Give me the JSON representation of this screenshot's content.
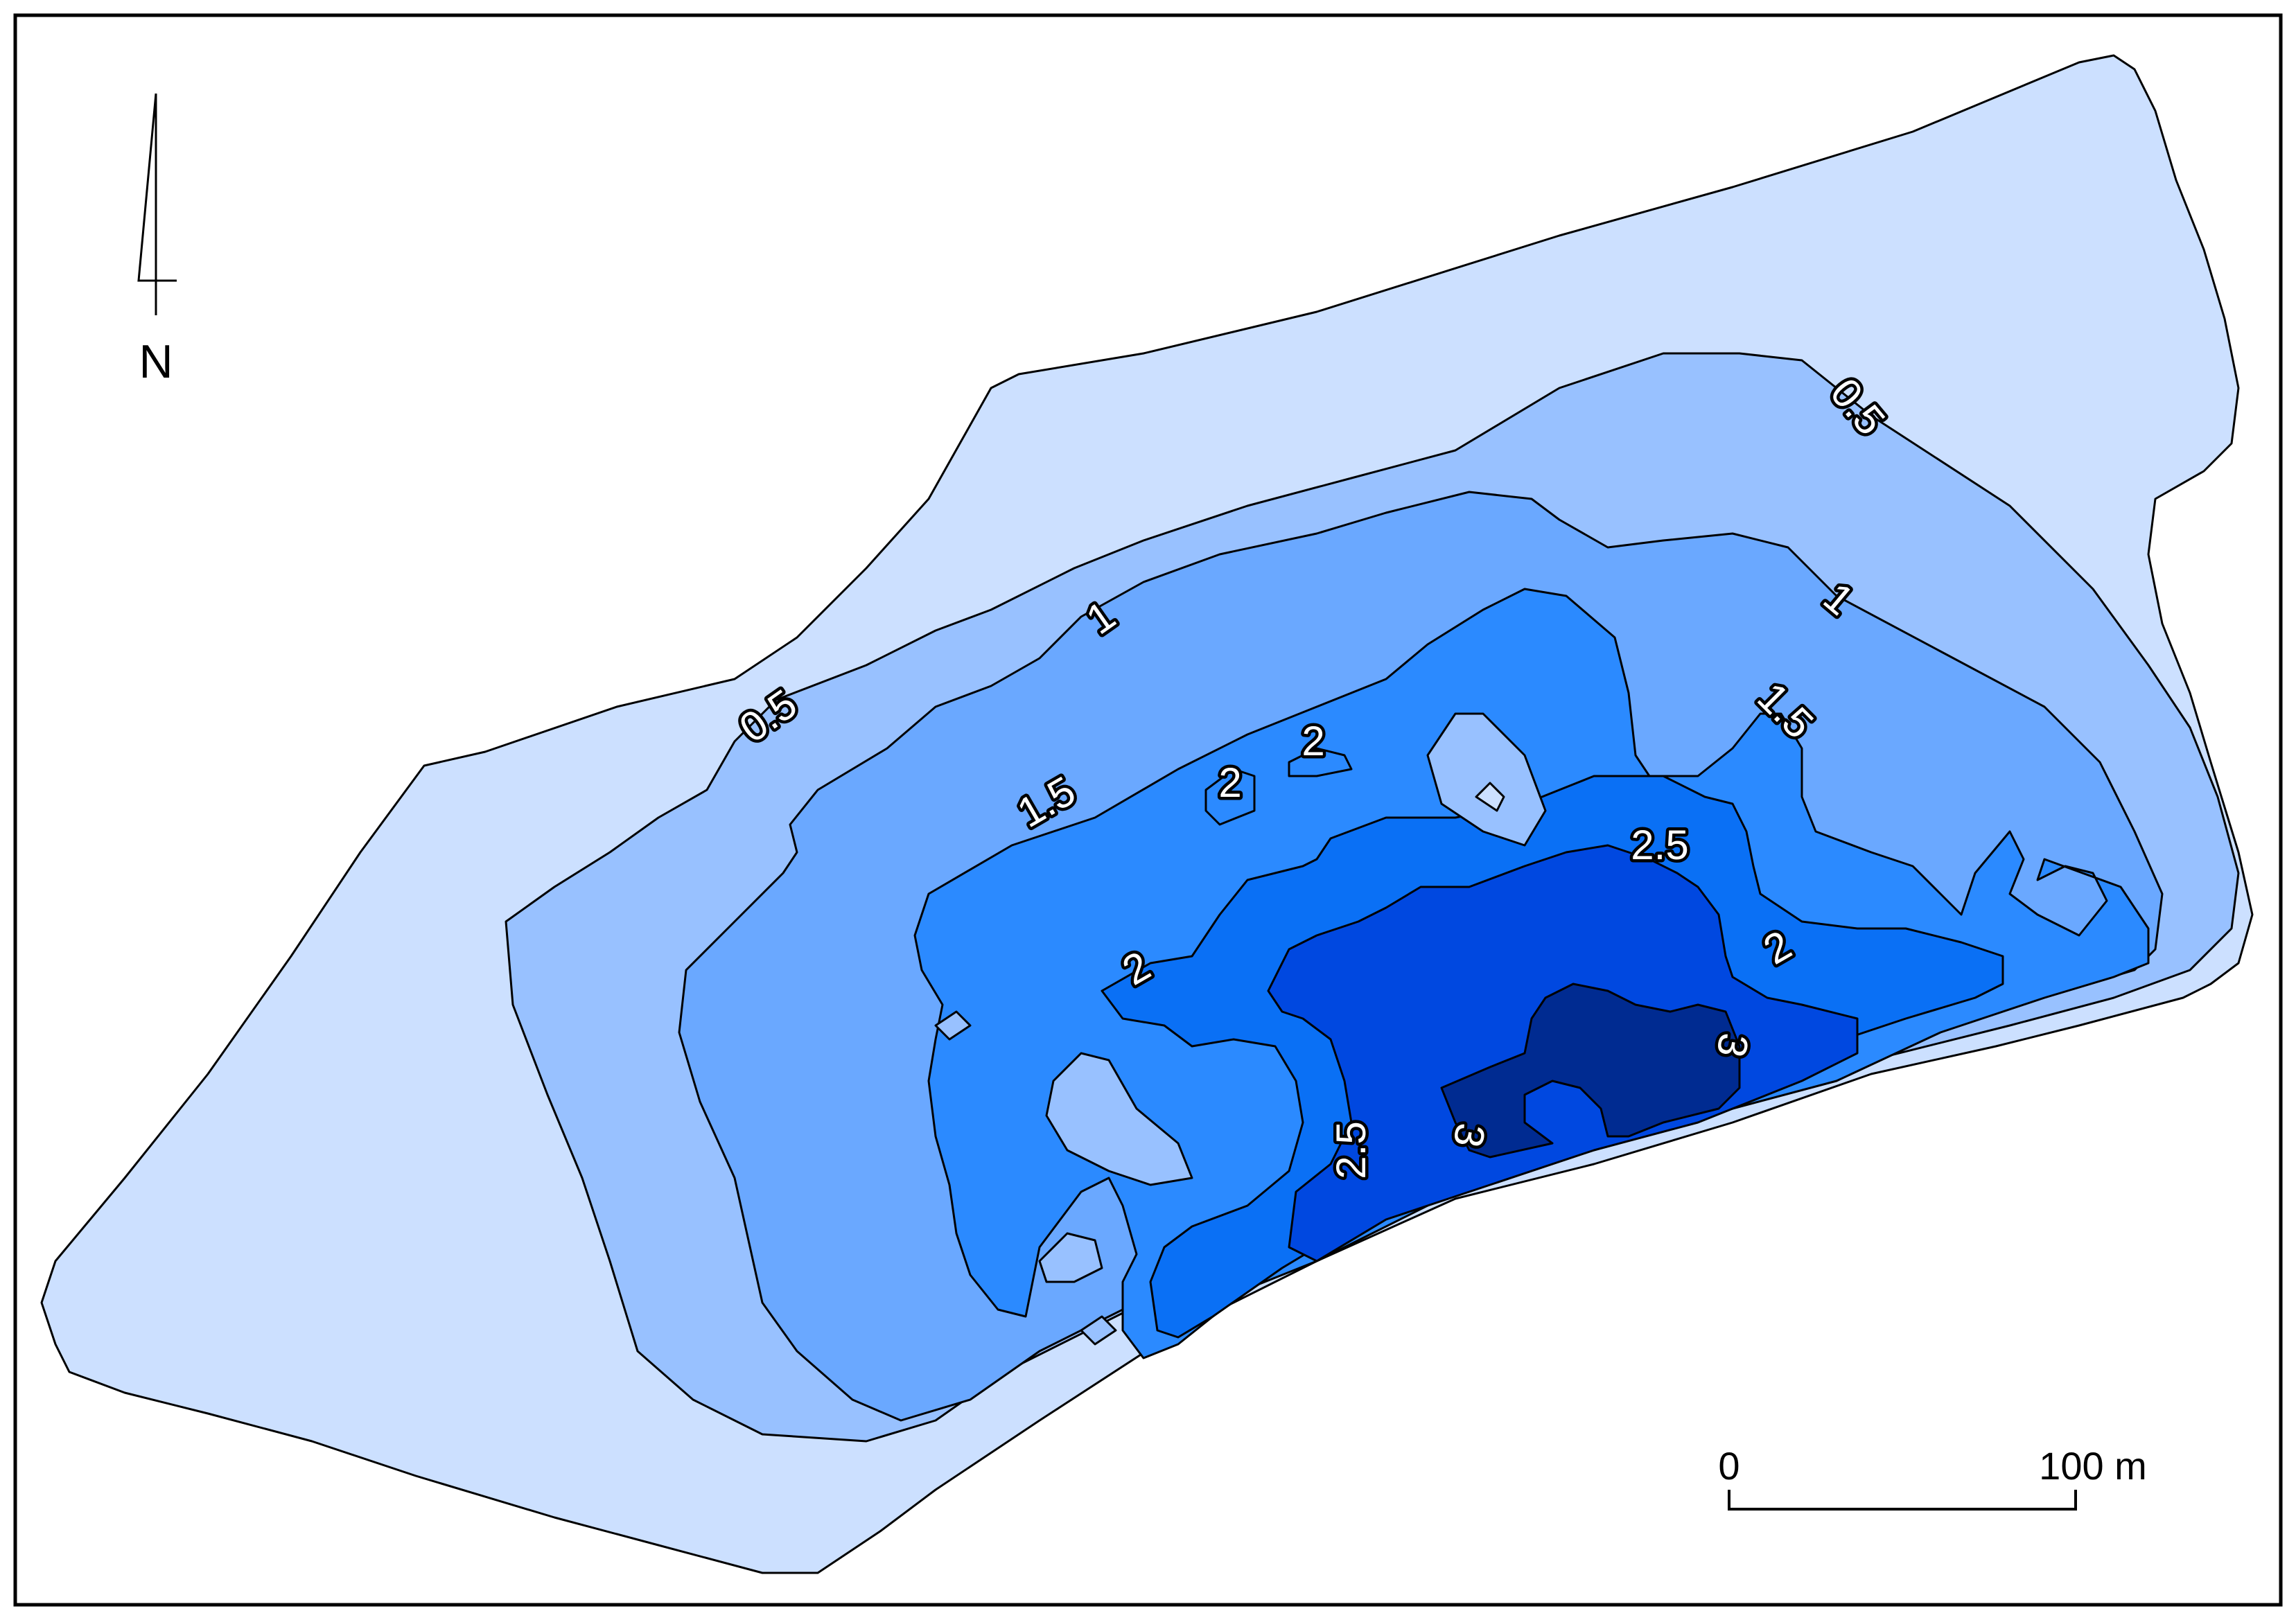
{
  "map": {
    "north_arrow": {
      "label": "N"
    },
    "scale_bar": {
      "start_label": "0",
      "end_label": "100 m"
    },
    "colors": {
      "background": "#ffffff",
      "depth_0_0.5": "#cce0ff",
      "depth_0.5_1": "#98c1ff",
      "depth_1_1.5": "#6aa8ff",
      "depth_1.5_2": "#2b8aff",
      "depth_2_2.5": "#0a70f5",
      "depth_2.5_3": "#0048e0",
      "depth_gt_3": "#002b91",
      "contour_line": "#000000"
    },
    "contour_labels": [
      {
        "id": "c-05-a",
        "text": "0.5"
      },
      {
        "id": "c-05-b",
        "text": "0.5"
      },
      {
        "id": "c-1-a",
        "text": "1"
      },
      {
        "id": "c-1-b",
        "text": "1"
      },
      {
        "id": "c-15-a",
        "text": "1.5"
      },
      {
        "id": "c-15-b",
        "text": "1.5"
      },
      {
        "id": "c-2-a",
        "text": "2"
      },
      {
        "id": "c-2-b",
        "text": "2"
      },
      {
        "id": "c-2-c",
        "text": "2"
      },
      {
        "id": "c-2-d",
        "text": "2"
      },
      {
        "id": "c-25-a",
        "text": "2.5"
      },
      {
        "id": "c-25-b",
        "text": "2.5"
      },
      {
        "id": "c-3-a",
        "text": "3"
      },
      {
        "id": "c-3-b",
        "text": "3"
      }
    ]
  }
}
